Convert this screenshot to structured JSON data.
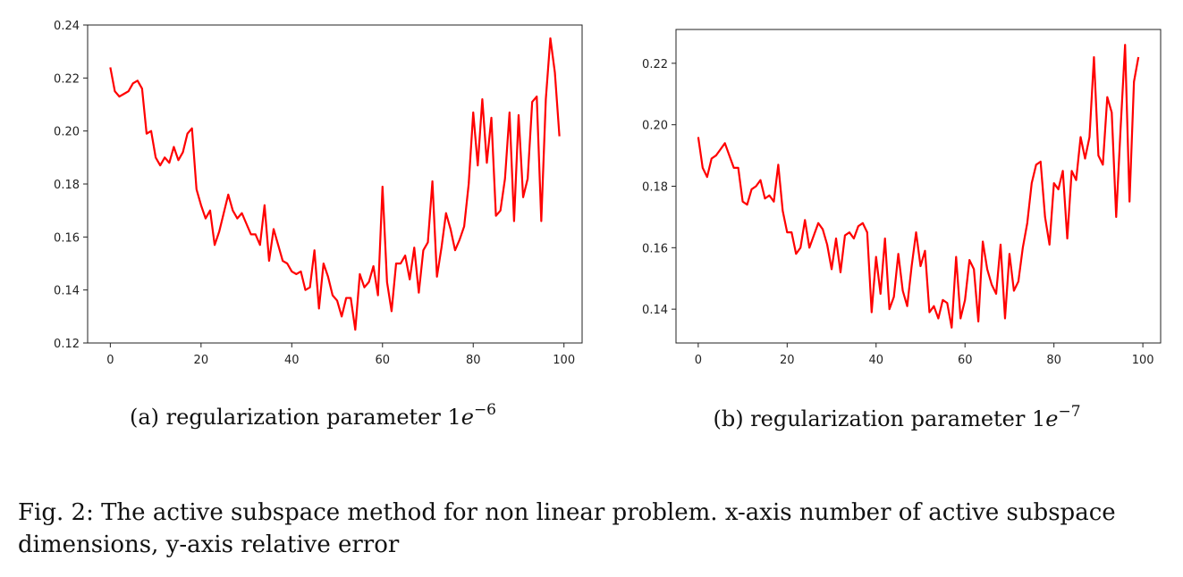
{
  "chart_data": [
    {
      "type": "line",
      "color": "#ff0000",
      "x": [
        0,
        1,
        2,
        3,
        4,
        5,
        6,
        7,
        8,
        9,
        10,
        11,
        12,
        13,
        14,
        15,
        16,
        17,
        18,
        19,
        20,
        21,
        22,
        23,
        24,
        25,
        26,
        27,
        28,
        29,
        30,
        31,
        32,
        33,
        34,
        35,
        36,
        37,
        38,
        39,
        40,
        41,
        42,
        43,
        44,
        45,
        46,
        47,
        48,
        49,
        50,
        51,
        52,
        53,
        54,
        55,
        56,
        57,
        58,
        59,
        60,
        61,
        62,
        63,
        64,
        65,
        66,
        67,
        68,
        69,
        70,
        71,
        72,
        73,
        74,
        75,
        76,
        77,
        78,
        79,
        80,
        81,
        82,
        83,
        84,
        85,
        86,
        87,
        88,
        89,
        90,
        91,
        92,
        93,
        94,
        95,
        96,
        97,
        98,
        99
      ],
      "series": [
        {
          "values": [
            0.224,
            0.215,
            0.213,
            0.214,
            0.215,
            0.218,
            0.219,
            0.216,
            0.199,
            0.2,
            0.19,
            0.187,
            0.19,
            0.188,
            0.194,
            0.189,
            0.192,
            0.199,
            0.201,
            0.178,
            0.172,
            0.167,
            0.17,
            0.157,
            0.162,
            0.169,
            0.176,
            0.17,
            0.167,
            0.169,
            0.165,
            0.161,
            0.161,
            0.157,
            0.172,
            0.151,
            0.163,
            0.157,
            0.151,
            0.15,
            0.147,
            0.146,
            0.147,
            0.14,
            0.141,
            0.155,
            0.133,
            0.15,
            0.145,
            0.138,
            0.136,
            0.13,
            0.137,
            0.137,
            0.125,
            0.146,
            0.141,
            0.143,
            0.149,
            0.138,
            0.179,
            0.143,
            0.132,
            0.15,
            0.15,
            0.153,
            0.144,
            0.156,
            0.139,
            0.155,
            0.158,
            0.181,
            0.145,
            0.156,
            0.169,
            0.163,
            0.155,
            0.159,
            0.164,
            0.18,
            0.207,
            0.187,
            0.212,
            0.188,
            0.205,
            0.168,
            0.17,
            0.182,
            0.207,
            0.166,
            0.206,
            0.175,
            0.182,
            0.211,
            0.213,
            0.166,
            0.212,
            0.235,
            0.222,
            0.198
          ]
        }
      ],
      "xticks": [
        0,
        20,
        40,
        60,
        80,
        100
      ],
      "yticks": [
        0.12,
        0.14,
        0.16,
        0.18,
        0.2,
        0.22,
        0.24
      ],
      "ytick_labels": [
        "0.12",
        "0.14",
        "0.16",
        "0.18",
        "0.20",
        "0.22",
        "0.24"
      ],
      "xlim": [
        -5,
        104
      ],
      "ylim": [
        0.12,
        0.24
      ],
      "subcaption": "(a) regularization parameter 1e−6"
    },
    {
      "type": "line",
      "color": "#ff0000",
      "x": [
        0,
        1,
        2,
        3,
        4,
        5,
        6,
        7,
        8,
        9,
        10,
        11,
        12,
        13,
        14,
        15,
        16,
        17,
        18,
        19,
        20,
        21,
        22,
        23,
        24,
        25,
        26,
        27,
        28,
        29,
        30,
        31,
        32,
        33,
        34,
        35,
        36,
        37,
        38,
        39,
        40,
        41,
        42,
        43,
        44,
        45,
        46,
        47,
        48,
        49,
        50,
        51,
        52,
        53,
        54,
        55,
        56,
        57,
        58,
        59,
        60,
        61,
        62,
        63,
        64,
        65,
        66,
        67,
        68,
        69,
        70,
        71,
        72,
        73,
        74,
        75,
        76,
        77,
        78,
        79,
        80,
        81,
        82,
        83,
        84,
        85,
        86,
        87,
        88,
        89,
        90,
        91,
        92,
        93,
        94,
        95,
        96,
        97,
        98,
        99
      ],
      "series": [
        {
          "values": [
            0.196,
            0.186,
            0.183,
            0.189,
            0.19,
            0.192,
            0.194,
            0.19,
            0.186,
            0.186,
            0.175,
            0.174,
            0.179,
            0.18,
            0.182,
            0.176,
            0.177,
            0.175,
            0.187,
            0.172,
            0.165,
            0.165,
            0.158,
            0.16,
            0.169,
            0.16,
            0.164,
            0.168,
            0.166,
            0.161,
            0.153,
            0.163,
            0.152,
            0.164,
            0.165,
            0.163,
            0.167,
            0.168,
            0.165,
            0.139,
            0.157,
            0.145,
            0.163,
            0.14,
            0.144,
            0.158,
            0.146,
            0.141,
            0.154,
            0.165,
            0.154,
            0.159,
            0.139,
            0.141,
            0.137,
            0.143,
            0.142,
            0.134,
            0.157,
            0.137,
            0.143,
            0.156,
            0.153,
            0.136,
            0.162,
            0.153,
            0.148,
            0.145,
            0.161,
            0.137,
            0.158,
            0.146,
            0.149,
            0.16,
            0.168,
            0.181,
            0.187,
            0.188,
            0.17,
            0.161,
            0.181,
            0.179,
            0.185,
            0.163,
            0.185,
            0.182,
            0.196,
            0.189,
            0.196,
            0.222,
            0.19,
            0.187,
            0.209,
            0.204,
            0.17,
            0.199,
            0.226,
            0.175,
            0.214,
            0.222
          ]
        }
      ],
      "xticks": [
        0,
        20,
        40,
        60,
        80,
        100
      ],
      "yticks": [
        0.14,
        0.16,
        0.18,
        0.2,
        0.22
      ],
      "ytick_labels": [
        "0.14",
        "0.16",
        "0.18",
        "0.20",
        "0.22"
      ],
      "xlim": [
        -5,
        104
      ],
      "ylim": [
        0.129,
        0.231
      ],
      "subcaption": "(b) regularization parameter 1e−7"
    }
  ],
  "figure_caption": "Fig. 2: The active subspace method for non linear problem. x-axis number of active subspace dimensions, y-axis relative error"
}
